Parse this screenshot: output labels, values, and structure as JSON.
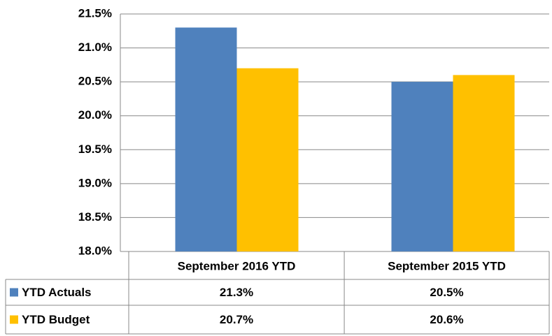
{
  "chart_data": {
    "type": "bar",
    "categories": [
      "September 2016 YTD",
      "September 2015 YTD"
    ],
    "series": [
      {
        "name": "YTD Actuals",
        "color": "#4f81bd",
        "values": [
          21.3,
          20.5
        ],
        "value_labels": [
          "21.3%",
          "20.5%"
        ]
      },
      {
        "name": "YTD Budget",
        "color": "#ffc000",
        "values": [
          20.7,
          20.6
        ],
        "value_labels": [
          "20.7%",
          "20.6%"
        ]
      }
    ],
    "ylim": [
      18.0,
      21.5
    ],
    "yticks": [
      {
        "value": 18.0,
        "label": "18.0%"
      },
      {
        "value": 18.5,
        "label": "18.5%"
      },
      {
        "value": 19.0,
        "label": "19.0%"
      },
      {
        "value": 19.5,
        "label": "19.5%"
      },
      {
        "value": 20.0,
        "label": "20.0%"
      },
      {
        "value": 20.5,
        "label": "20.5%"
      },
      {
        "value": 21.0,
        "label": "21.0%"
      },
      {
        "value": 21.5,
        "label": "21.5%"
      }
    ],
    "grid": true
  }
}
